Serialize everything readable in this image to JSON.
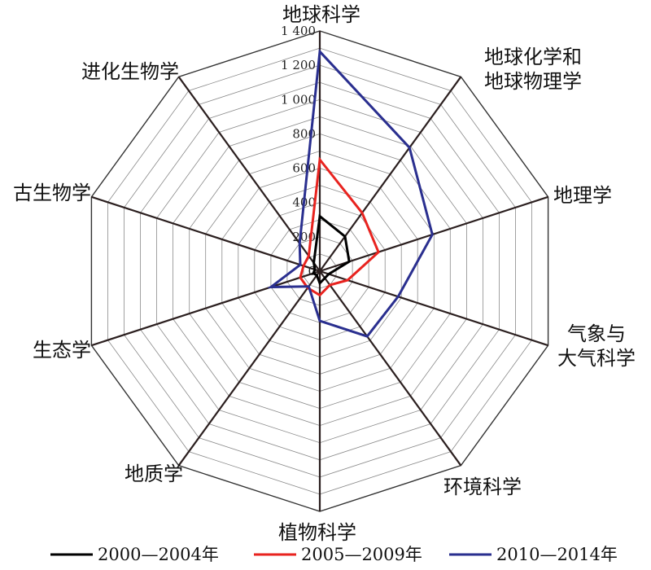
{
  "chart_data": {
    "type": "radar",
    "title": "",
    "categories": [
      "地球科学",
      "地球化学和\n地球物理学",
      "地理学",
      "气象与\n大气科学",
      "环境科学",
      "植物科学",
      "地质学",
      "生态学",
      "古生物学",
      "进化生物学"
    ],
    "axis_range": [
      0,
      1400
    ],
    "ticks": [
      "0",
      "200",
      "400",
      "600",
      "800",
      "1 000",
      "1 200",
      "1 400"
    ],
    "tick_values": [
      0,
      200,
      400,
      600,
      800,
      1000,
      1200,
      1400
    ],
    "grid": true,
    "legend_position": "bottom",
    "series": [
      {
        "name": "2000—2004年",
        "color": "#000000",
        "values": [
          320,
          250,
          180,
          55,
          50,
          70,
          30,
          40,
          30,
          60
        ]
      },
      {
        "name": "2005—2009年",
        "color": "#e8231f",
        "values": [
          650,
          420,
          360,
          170,
          100,
          140,
          120,
          120,
          100,
          110
        ]
      },
      {
        "name": "2010—2014年",
        "color": "#2a2f8f",
        "values": [
          1280,
          890,
          690,
          480,
          470,
          290,
          110,
          300,
          120,
          200
        ]
      }
    ]
  }
}
